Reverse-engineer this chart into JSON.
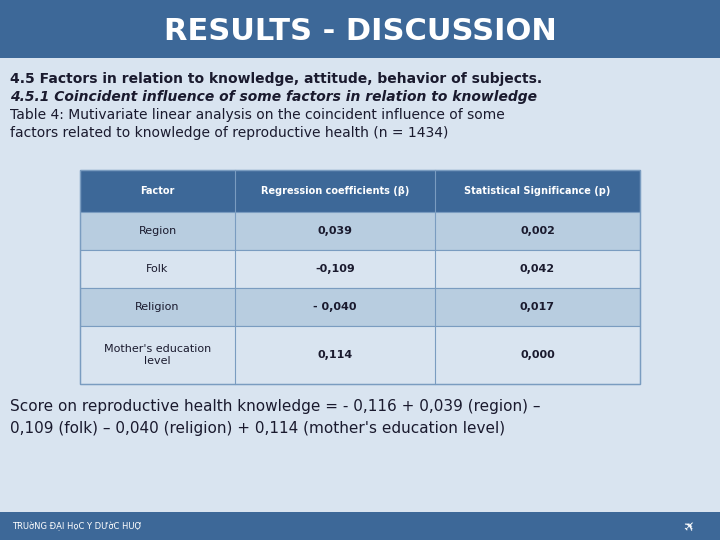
{
  "title": "RESULTS - DISCUSSION",
  "title_bg_color": "#3d6898",
  "title_text_color": "#ffffff",
  "bg_color": "#d9e4f0",
  "line1": "4.5 Factors in relation to knowledge, attitude, behavior of subjects.",
  "line2": "4.5.1 Coincident influence of some factors in relation to knowledge",
  "line3": "Table 4: Mutivariate linear analysis on the coincident influence of some",
  "line4": "factors related to knowledge of reproductive health (n = 1434)",
  "table_header": [
    "Factor",
    "Regression coefficients (β)",
    "Statistical Significance (p)"
  ],
  "table_rows": [
    [
      "Region",
      "0,039",
      "0,002"
    ],
    [
      "Folk",
      "-0,109",
      "0,042"
    ],
    [
      "Religion",
      "- 0,040",
      "0,017"
    ],
    [
      "Mother's education\nlevel",
      "0,114",
      "0,000"
    ]
  ],
  "table_header_bg": "#3d6898",
  "table_header_text": "#ffffff",
  "table_row_bg_odd": "#b8cde0",
  "table_row_bg_even": "#d9e4f0",
  "table_border_color": "#7a9cc0",
  "table_text_color": "#1a1a2e",
  "footer_line1": "Score on reproductive health knowledge = - 0,116 + 0,039 (region) –",
  "footer_line2": "0,109 (folk) – 0,040 (religion) + 0,114 (mother's education level)",
  "footer_text": "#1a1a2e",
  "bottom_bar_color": "#3d6898",
  "bottom_text": "TRUờNG ĐẠI HọC Y DƯờC HUỢ",
  "bottom_text_color": "#ffffff"
}
